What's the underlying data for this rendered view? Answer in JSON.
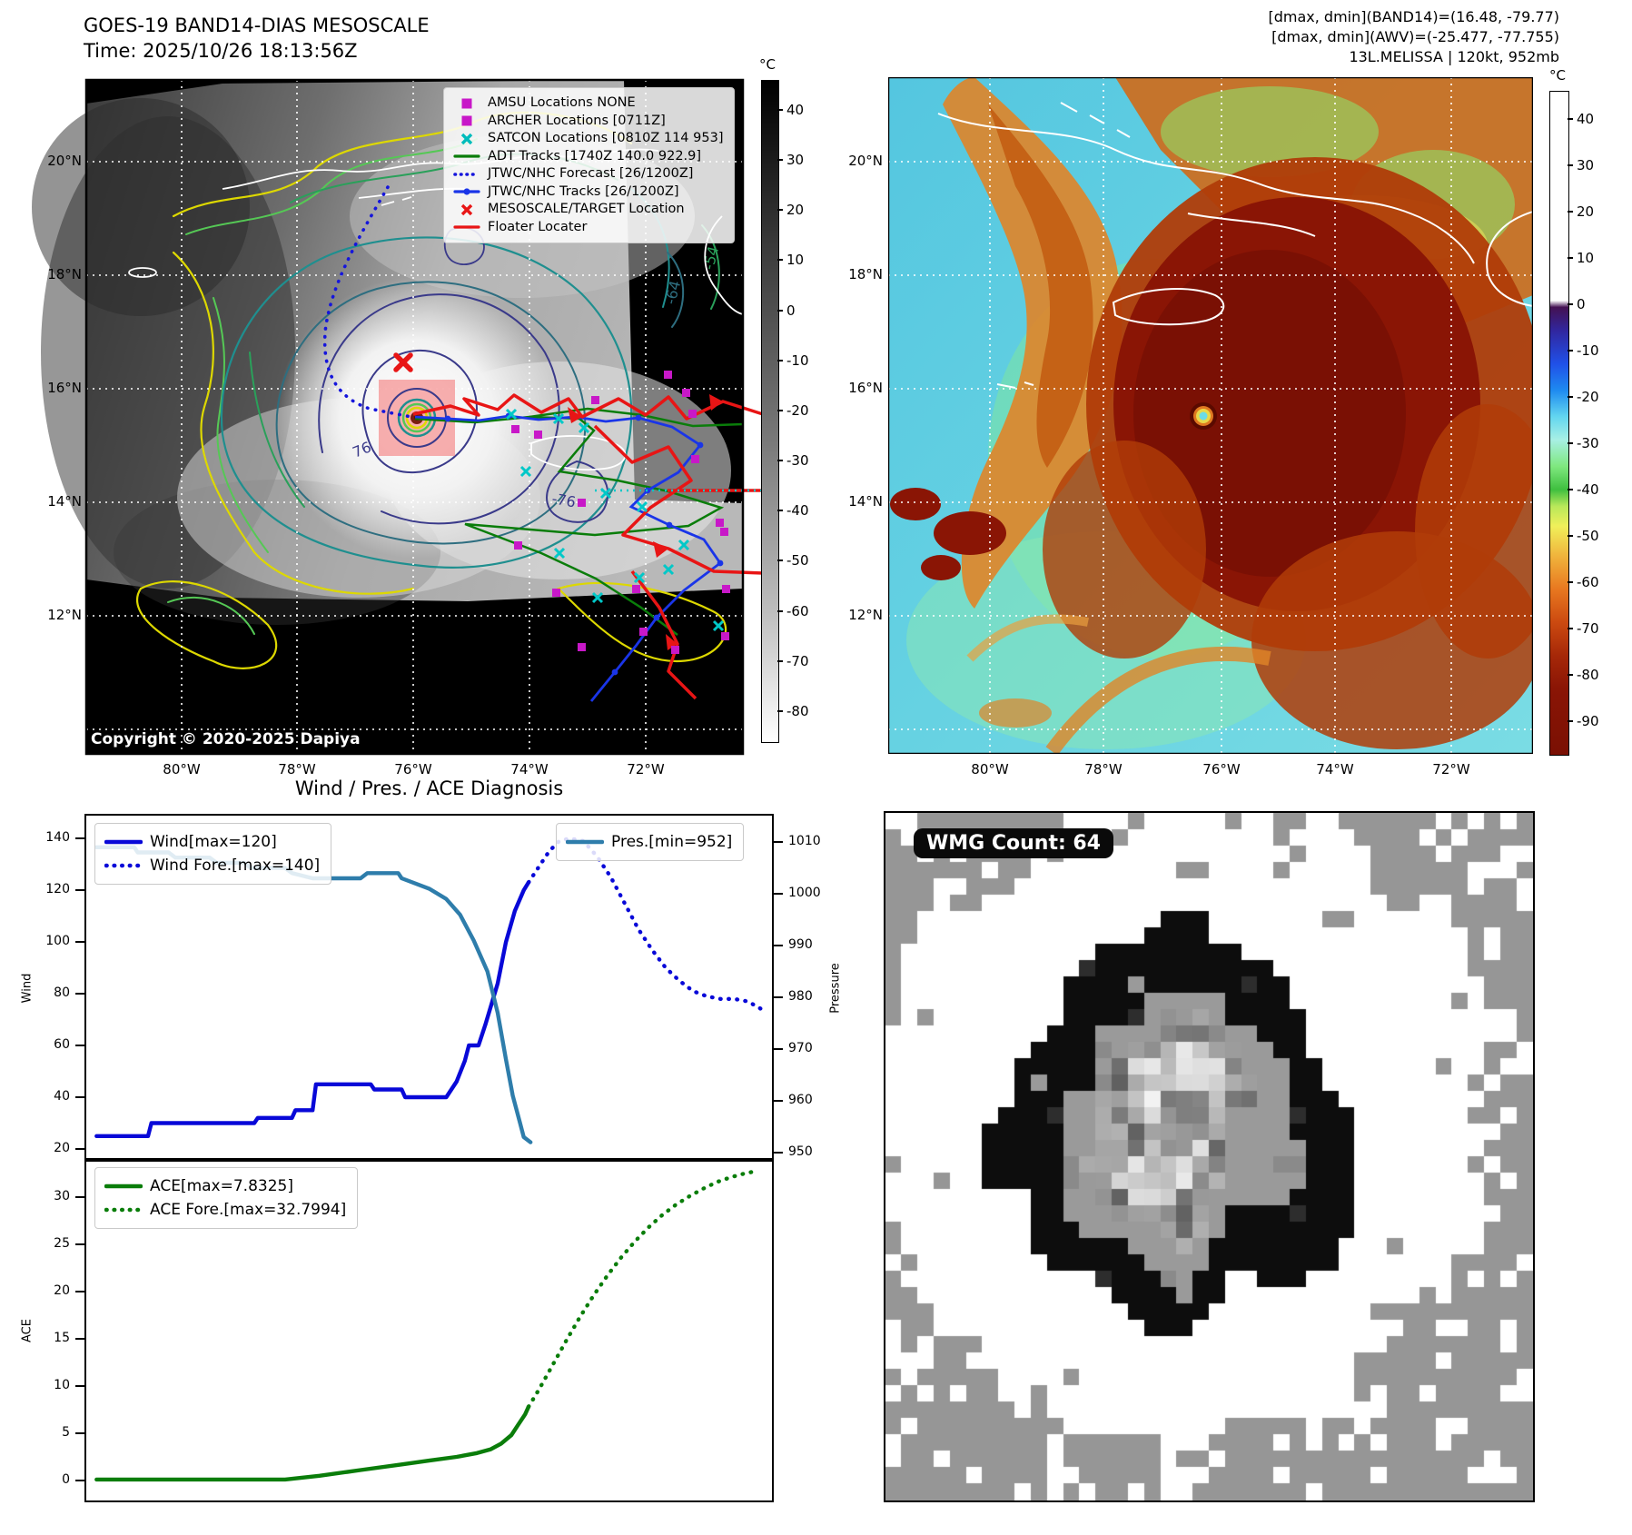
{
  "colors": {
    "magenta": "#c818c8",
    "cyan_marker": "#00bcbc",
    "track_green": "#0a7d0a",
    "wind_blue": "#0808d8",
    "track_blue": "#1a35e8",
    "red": "#e81515",
    "pressure_steel": "#2e7dab",
    "contour_yellow": "#ddd800",
    "contour_lightgreen": "#55c855",
    "contour_seagreen": "#2aa05a",
    "contour_teal": "#1f8f8f",
    "contour_navy": "#3a3a8a",
    "wmg_gray": "#969696",
    "wmg_black": "#0d0d0d"
  },
  "panel_tl": {
    "title_line1": "GOES-19 BAND14-DIAS MESOSCALE",
    "title_line2": "Time: 2025/10/26 18:13:56Z",
    "copyright": "Copyright © 2020-2025 Dapiya",
    "legend": [
      {
        "marker": "square-magenta",
        "label": "AMSU Locations NONE"
      },
      {
        "marker": "square-magenta",
        "label": "ARCHER Locations [0711Z]"
      },
      {
        "marker": "x-cyan",
        "label": "SATCON Locations [0810Z 114 953]"
      },
      {
        "marker": "line-green",
        "label": "ADT Tracks [1740Z 140.0 922.9]"
      },
      {
        "marker": "dotted-blue",
        "label": "JTWC/NHC Forecast [26/1200Z]"
      },
      {
        "marker": "linedot-blue",
        "label": "JTWC/NHC Tracks [26/1200Z]"
      },
      {
        "marker": "x-red",
        "label": "MESOSCALE/TARGET Location"
      },
      {
        "marker": "line-red",
        "label": "Floater Locater"
      }
    ],
    "lat_ticks": [
      "20°N",
      "18°N",
      "16°N",
      "14°N",
      "12°N"
    ],
    "lon_ticks": [
      "80°W",
      "78°W",
      "76°W",
      "74°W",
      "72°W"
    ],
    "colorbar": {
      "unit": "°C",
      "ticks": [
        40,
        30,
        20,
        10,
        0,
        -10,
        -20,
        -30,
        -40,
        -50,
        -60,
        -70,
        -80
      ]
    },
    "contour_labels": [
      "76",
      "-76",
      "-64",
      "-54"
    ]
  },
  "panel_tr": {
    "header_line1": "[dmax, dmin](BAND14)=(16.48, -79.77)",
    "header_line2": "[dmax, dmin](AWV)=(-25.477, -77.755)",
    "header_line3": "13L.MELISSA | 120kt, 952mb",
    "lat_ticks": [
      "20°N",
      "18°N",
      "16°N",
      "14°N",
      "12°N"
    ],
    "lon_ticks": [
      "80°W",
      "78°W",
      "76°W",
      "74°W",
      "72°W"
    ],
    "colorbar": {
      "unit": "°C",
      "ticks": [
        40,
        30,
        20,
        10,
        0,
        -10,
        -20,
        -30,
        -40,
        -50,
        -60,
        -70,
        -80,
        -90
      ]
    }
  },
  "charts_title": "Wind / Pres. / ACE Diagnosis",
  "chart_data": [
    {
      "type": "line",
      "title": "Wind and Pressure time series with forecast",
      "x_range": [
        0,
        1
      ],
      "grid": false,
      "left_axis": {
        "label": "Wind",
        "ticks": [
          140,
          120,
          100,
          80,
          60,
          40,
          20
        ],
        "range": [
          15.8,
          148.8
        ]
      },
      "right_axis": {
        "label": "Pressure",
        "ticks": [
          1010,
          1000,
          990,
          980,
          970,
          960,
          950
        ],
        "range": [
          948.6,
          1015.1
        ]
      },
      "series": [
        {
          "name": "Wind[max=120]",
          "axis": "left",
          "color": "#0808d8",
          "style": "solid",
          "points": [
            [
              0.015,
              25
            ],
            [
              0.09,
              25
            ],
            [
              0.095,
              30
            ],
            [
              0.245,
              30
            ],
            [
              0.25,
              32
            ],
            [
              0.3,
              32
            ],
            [
              0.305,
              35
            ],
            [
              0.33,
              35
            ],
            [
              0.335,
              45
            ],
            [
              0.415,
              45
            ],
            [
              0.42,
              43
            ],
            [
              0.46,
              43
            ],
            [
              0.465,
              40
            ],
            [
              0.525,
              40
            ],
            [
              0.54,
              46
            ],
            [
              0.552,
              54
            ],
            [
              0.558,
              60
            ],
            [
              0.572,
              60
            ],
            [
              0.582,
              68
            ],
            [
              0.6,
              84
            ],
            [
              0.612,
              100
            ],
            [
              0.625,
              112
            ],
            [
              0.638,
              120
            ],
            [
              0.645,
              123
            ]
          ]
        },
        {
          "name": "Wind Fore.[max=140]",
          "axis": "left",
          "color": "#0808d8",
          "style": "dotted",
          "points": [
            [
              0.645,
              123
            ],
            [
              0.66,
              129
            ],
            [
              0.675,
              135
            ],
            [
              0.69,
              139
            ],
            [
              0.705,
              140
            ],
            [
              0.725,
              139
            ],
            [
              0.745,
              133
            ],
            [
              0.765,
              125
            ],
            [
              0.785,
              115
            ],
            [
              0.805,
              105
            ],
            [
              0.825,
              97
            ],
            [
              0.845,
              90
            ],
            [
              0.865,
              85
            ],
            [
              0.885,
              81
            ],
            [
              0.905,
              79
            ],
            [
              0.925,
              78
            ],
            [
              0.945,
              78
            ],
            [
              0.965,
              77
            ],
            [
              0.985,
              74
            ]
          ]
        },
        {
          "name": "Pres.[min=952]",
          "axis": "right",
          "color": "#2e7dab",
          "style": "solid",
          "points": [
            [
              0.015,
              1009
            ],
            [
              0.07,
              1009
            ],
            [
              0.075,
              1008
            ],
            [
              0.12,
              1008
            ],
            [
              0.13,
              1007
            ],
            [
              0.18,
              1007
            ],
            [
              0.19,
              1006
            ],
            [
              0.23,
              1006
            ],
            [
              0.24,
              1005
            ],
            [
              0.29,
              1005
            ],
            [
              0.3,
              1004
            ],
            [
              0.33,
              1003
            ],
            [
              0.4,
              1003
            ],
            [
              0.41,
              1004
            ],
            [
              0.455,
              1004
            ],
            [
              0.46,
              1003
            ],
            [
              0.5,
              1001
            ],
            [
              0.525,
              999
            ],
            [
              0.545,
              996
            ],
            [
              0.565,
              991
            ],
            [
              0.585,
              985
            ],
            [
              0.6,
              977
            ],
            [
              0.612,
              968
            ],
            [
              0.622,
              961
            ],
            [
              0.632,
              956
            ],
            [
              0.638,
              953
            ],
            [
              0.648,
              952
            ]
          ]
        }
      ]
    },
    {
      "type": "line",
      "title": "ACE time series with forecast",
      "x_range": [
        0,
        1
      ],
      "grid": false,
      "left_axis": {
        "label": "ACE",
        "ticks": [
          30,
          25,
          20,
          15,
          10,
          5,
          0
        ],
        "range": [
          -2.12,
          33.94
        ]
      },
      "series": [
        {
          "name": "ACE[max=7.8325]",
          "axis": "left",
          "color": "#0a7d0a",
          "style": "solid",
          "points": [
            [
              0.015,
              0.1
            ],
            [
              0.29,
              0.1
            ],
            [
              0.34,
              0.5
            ],
            [
              0.4,
              1.1
            ],
            [
              0.46,
              1.7
            ],
            [
              0.5,
              2.1
            ],
            [
              0.54,
              2.5
            ],
            [
              0.57,
              2.9
            ],
            [
              0.59,
              3.3
            ],
            [
              0.605,
              3.9
            ],
            [
              0.62,
              4.8
            ],
            [
              0.63,
              5.9
            ],
            [
              0.64,
              7.0
            ],
            [
              0.645,
              7.8
            ]
          ]
        },
        {
          "name": "ACE Fore.[max=32.7994]",
          "axis": "left",
          "color": "#0a7d0a",
          "style": "dotted",
          "points": [
            [
              0.645,
              7.8
            ],
            [
              0.66,
              9.6
            ],
            [
              0.68,
              12.2
            ],
            [
              0.7,
              14.8
            ],
            [
              0.72,
              17.3
            ],
            [
              0.74,
              19.6
            ],
            [
              0.76,
              21.7
            ],
            [
              0.78,
              23.6
            ],
            [
              0.8,
              25.3
            ],
            [
              0.82,
              26.8
            ],
            [
              0.84,
              28.1
            ],
            [
              0.86,
              29.2
            ],
            [
              0.88,
              30.1
            ],
            [
              0.9,
              30.9
            ],
            [
              0.92,
              31.6
            ],
            [
              0.94,
              32.1
            ],
            [
              0.96,
              32.5
            ],
            [
              0.98,
              32.8
            ]
          ]
        }
      ]
    }
  ],
  "panel_wmg": {
    "badge": "WMG Count: 64",
    "palette": {
      "outer_gray": "#969696",
      "white": "#ffffff",
      "black": "#0d0d0d",
      "annulus": "#9a9a9a"
    }
  }
}
